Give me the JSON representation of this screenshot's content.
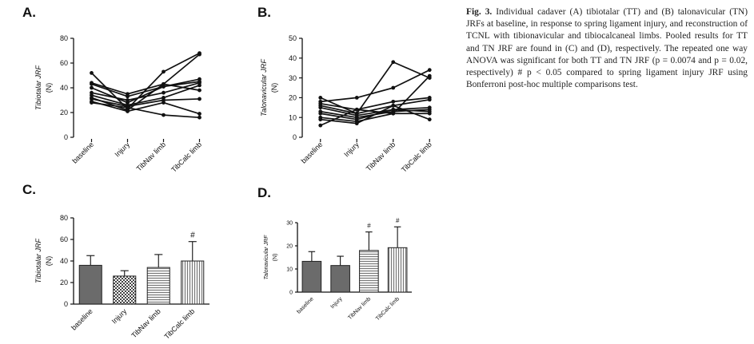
{
  "panels": [
    {
      "id": "A",
      "label": "A."
    },
    {
      "id": "B",
      "label": "B."
    },
    {
      "id": "C",
      "label": "C."
    },
    {
      "id": "D",
      "label": "D."
    }
  ],
  "caption": {
    "label": "Fig. 3.",
    "text": "Individual cadaver (A) tibiotalar (TT) and (B) talonavicular (TN) JRFs at baseline, in response to spring ligament injury, and reconstruction of TCNL with tibionavicular and tibiocalcaneal limbs. Pooled results for TT and TN JRF are found in (C) and (D), respectively. The repeated one way ANOVA was significant for both TT and TN JRF (p = 0.0074 and p = 0.02, respectively) # p < 0.05 compared to spring ligament injury JRF using Bonferroni post-hoc multiple comparisons test."
  },
  "chart_data": [
    {
      "id": "A",
      "type": "line",
      "categories": [
        "baseline",
        "Injury",
        "TibNav limb",
        "TibCalc limb"
      ],
      "ylabel": "Tibiotalar JRF",
      "yunit": "(N)",
      "ylim": [
        0,
        80
      ],
      "yticks": [
        0,
        20,
        40,
        60,
        80
      ],
      "series": [
        {
          "values": [
            52,
            23,
            53,
            68
          ]
        },
        {
          "values": [
            44,
            35,
            43,
            67
          ]
        },
        {
          "values": [
            43,
            33,
            41,
            45
          ]
        },
        {
          "values": [
            40,
            28,
            41,
            47
          ]
        },
        {
          "values": [
            36,
            30,
            36,
            44
          ]
        },
        {
          "values": [
            34,
            26,
            32,
            42
          ]
        },
        {
          "values": [
            32,
            22,
            43,
            38
          ]
        },
        {
          "values": [
            31,
            25,
            30,
            31
          ]
        },
        {
          "values": [
            29,
            21,
            28,
            19
          ]
        },
        {
          "values": [
            28,
            24,
            18,
            16
          ]
        }
      ]
    },
    {
      "id": "B",
      "type": "line",
      "categories": [
        "baseline",
        "Injury",
        "TibNav limb",
        "TibCalc limb"
      ],
      "ylabel": "Talonavicular JRF",
      "yunit": "(N)",
      "ylim": [
        0,
        50
      ],
      "yticks": [
        0,
        10,
        20,
        30,
        40,
        50
      ],
      "series": [
        {
          "values": [
            20,
            12,
            38,
            30
          ]
        },
        {
          "values": [
            18,
            20,
            25,
            34
          ]
        },
        {
          "values": [
            17,
            14,
            18,
            20
          ]
        },
        {
          "values": [
            16,
            12,
            16,
            19
          ]
        },
        {
          "values": [
            15,
            11,
            14,
            15
          ]
        },
        {
          "values": [
            13,
            10,
            13,
            14
          ]
        },
        {
          "values": [
            12,
            9,
            14,
            13
          ]
        },
        {
          "values": [
            10,
            8,
            12,
            12
          ]
        },
        {
          "values": [
            9,
            7,
            16,
            9
          ]
        },
        {
          "values": [
            6,
            14,
            12,
            31
          ]
        }
      ]
    },
    {
      "id": "C",
      "type": "bar",
      "categories": [
        "baseline",
        "Injury",
        "TibNav limb",
        "TibCalc limb"
      ],
      "values": [
        36,
        26,
        34,
        40
      ],
      "errors": [
        9,
        5,
        12,
        18
      ],
      "patterns": [
        "dark",
        "check",
        "hlines",
        "vlines"
      ],
      "significance": [
        "",
        "",
        "",
        "#"
      ],
      "ylabel": "Tibiotalar JRF",
      "yunit": "(N)",
      "ylim": [
        0,
        80
      ],
      "yticks": [
        0,
        20,
        40,
        60,
        80
      ]
    },
    {
      "id": "D",
      "type": "bar",
      "categories": [
        "baseline",
        "Injury",
        "TibNav limb",
        "TibCalc limb"
      ],
      "values": [
        13.3,
        11.5,
        18,
        19.2
      ],
      "errors": [
        4.2,
        4,
        8,
        9
      ],
      "patterns": [
        "dark",
        "dark",
        "hlines",
        "vlines"
      ],
      "significance": [
        "",
        "",
        "#",
        "#"
      ],
      "ylabel": "Talonavicular JRF",
      "yunit": "(N)",
      "ylim": [
        0,
        30
      ],
      "yticks": [
        0,
        10,
        20,
        30
      ]
    }
  ]
}
